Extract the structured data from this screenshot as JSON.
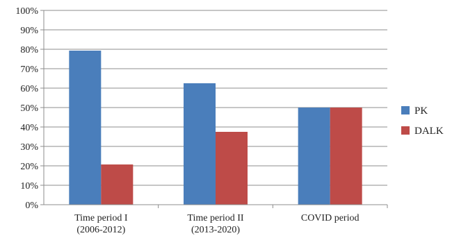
{
  "chart_data": {
    "type": "bar",
    "categories": [
      [
        "Time period I",
        "(2006-2012)"
      ],
      [
        "Time period II",
        "(2013-2020)"
      ],
      [
        "COVID period"
      ]
    ],
    "series": [
      {
        "name": "PK",
        "color": "#4a7ebb",
        "values": [
          79.3,
          62.5,
          50.0
        ]
      },
      {
        "name": "DALK",
        "color": "#be4b48",
        "values": [
          20.7,
          37.5,
          50.0
        ]
      }
    ],
    "ylim": [
      0,
      100
    ],
    "yticks": [
      "0%",
      "10%",
      "20%",
      "30%",
      "40%",
      "50%",
      "60%",
      "70%",
      "80%",
      "90%",
      "100%"
    ],
    "grid": true,
    "legend_position": "right"
  }
}
